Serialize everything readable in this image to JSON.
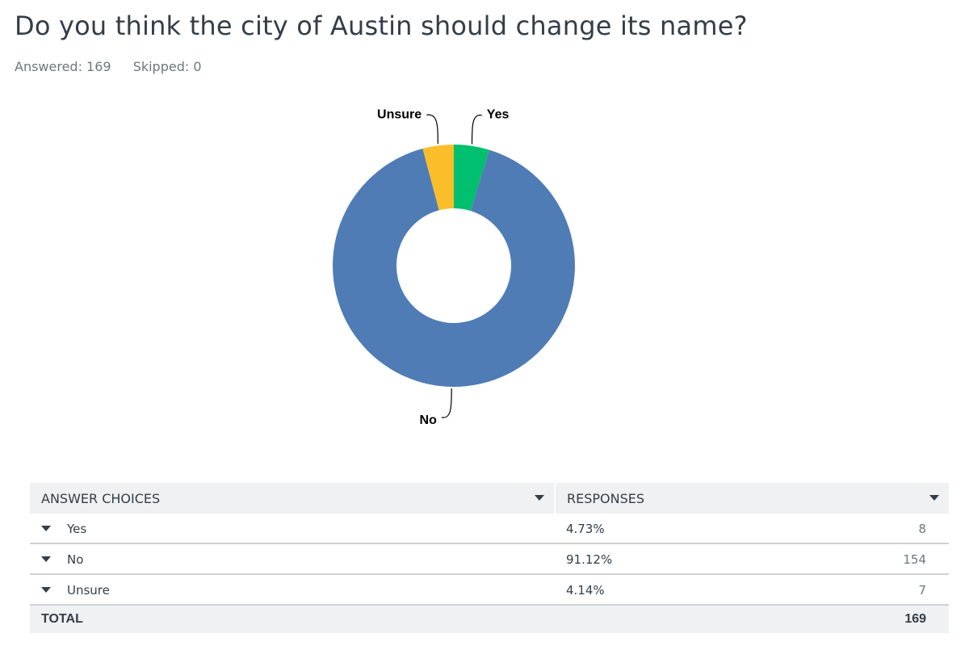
{
  "question": {
    "title": "Do you think the city of Austin should change its name?",
    "answered": "Answered: 169",
    "skipped": "Skipped: 0"
  },
  "chart_data": {
    "type": "pie",
    "variant": "donut",
    "categories": [
      "Yes",
      "No",
      "Unsure"
    ],
    "values": [
      4.73,
      91.12,
      4.14
    ],
    "colors": [
      "#00bf6f",
      "#507cb6",
      "#f9be2a"
    ],
    "labels": [
      "Yes",
      "No",
      "Unsure"
    ]
  },
  "table": {
    "headers": {
      "choices": "ANSWER CHOICES",
      "responses": "RESPONSES"
    },
    "rows": [
      {
        "choice": "Yes",
        "percent": "4.73%",
        "count": "8"
      },
      {
        "choice": "No",
        "percent": "91.12%",
        "count": "154"
      },
      {
        "choice": "Unsure",
        "percent": "4.14%",
        "count": "7"
      }
    ],
    "total": {
      "label": "TOTAL",
      "count": "169"
    }
  }
}
